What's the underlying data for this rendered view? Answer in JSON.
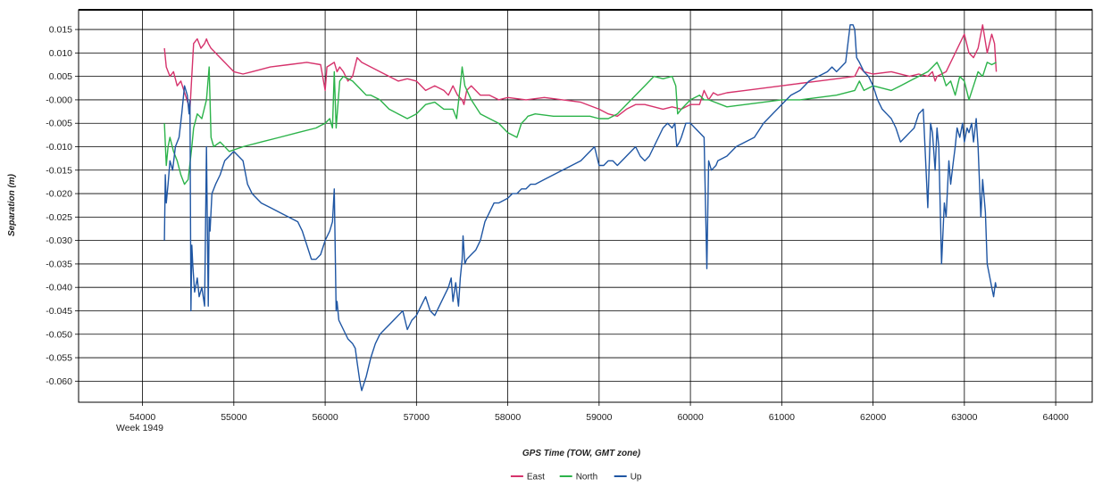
{
  "chart_data": {
    "type": "line",
    "xlabel": "GPS Time (TOW, GMT zone)",
    "ylabel": "Separation (m)",
    "x_sublabel": "Week 1949",
    "xlim": [
      53300,
      64400
    ],
    "ylim": [
      -0.0645,
      0.0192
    ],
    "x_ticks": [
      54000,
      55000,
      56000,
      57000,
      58000,
      59000,
      60000,
      61000,
      62000,
      63000,
      64000
    ],
    "x_tick_labels": [
      "54000",
      "55000",
      "56000",
      "57000",
      "58000",
      "59000",
      "60000",
      "61000",
      "62000",
      "63000",
      "64000"
    ],
    "y_ticks": [
      0.015,
      0.01,
      0.005,
      0.0,
      -0.005,
      -0.01,
      -0.015,
      -0.02,
      -0.025,
      -0.03,
      -0.035,
      -0.04,
      -0.045,
      -0.05,
      -0.055,
      -0.06
    ],
    "y_tick_labels": [
      "0.015",
      "0.010",
      "0.005",
      "-0.000",
      "-0.005",
      "-0.010",
      "-0.015",
      "-0.020",
      "-0.025",
      "-0.030",
      "-0.035",
      "-0.040",
      "-0.045",
      "-0.050",
      "-0.055",
      "-0.060"
    ],
    "grid": true,
    "legend_position": "bottom-center",
    "series": [
      {
        "name": "East",
        "color": "#d6336c",
        "x": [
          54240,
          54260,
          54300,
          54340,
          54380,
          54420,
          54470,
          54520,
          54560,
          54600,
          54640,
          54680,
          54700,
          54720,
          54750,
          54800,
          54900,
          55000,
          55100,
          55200,
          55400,
          55600,
          55800,
          55950,
          56000,
          56020,
          56100,
          56130,
          56160,
          56200,
          56250,
          56300,
          56350,
          56400,
          56500,
          56600,
          56700,
          56800,
          56900,
          57000,
          57100,
          57200,
          57300,
          57350,
          57400,
          57450,
          57500,
          57520,
          57550,
          57600,
          57700,
          57800,
          57900,
          58000,
          58200,
          58400,
          58600,
          58800,
          59000,
          59100,
          59200,
          59300,
          59400,
          59500,
          59600,
          59700,
          59800,
          59900,
          60000,
          60100,
          60150,
          60200,
          60250,
          60300,
          60400,
          60600,
          60800,
          61000,
          61200,
          61400,
          61600,
          61800,
          61850,
          61900,
          62000,
          62200,
          62400,
          62500,
          62600,
          62650,
          62680,
          62700,
          62800,
          62900,
          62950,
          63000,
          63050,
          63100,
          63150,
          63200,
          63250,
          63300,
          63330,
          63350
        ],
        "y": [
          0.011,
          0.007,
          0.005,
          0.006,
          0.003,
          0.004,
          0.001,
          -0.002,
          0.012,
          0.013,
          0.011,
          0.012,
          0.013,
          0.012,
          0.011,
          0.01,
          0.008,
          0.006,
          0.0055,
          0.006,
          0.007,
          0.0075,
          0.008,
          0.0075,
          0.002,
          0.007,
          0.008,
          0.006,
          0.007,
          0.006,
          0.004,
          0.005,
          0.009,
          0.008,
          0.007,
          0.006,
          0.005,
          0.004,
          0.0045,
          0.004,
          0.002,
          0.003,
          0.002,
          0.001,
          0.003,
          0.001,
          0.0,
          -0.001,
          0.002,
          0.003,
          0.001,
          0.001,
          0.0,
          0.0005,
          0.0,
          0.0005,
          0.0,
          -0.0005,
          -0.002,
          -0.003,
          -0.0035,
          -0.002,
          -0.001,
          -0.001,
          -0.0015,
          -0.002,
          -0.0015,
          -0.002,
          -0.001,
          -0.001,
          0.002,
          0.0,
          0.0015,
          0.001,
          0.0015,
          0.002,
          0.0025,
          0.003,
          0.0035,
          0.004,
          0.0045,
          0.005,
          0.007,
          0.006,
          0.0055,
          0.006,
          0.005,
          0.0055,
          0.005,
          0.006,
          0.004,
          0.005,
          0.006,
          0.01,
          0.012,
          0.014,
          0.01,
          0.009,
          0.011,
          0.016,
          0.01,
          0.014,
          0.012,
          0.006
        ]
      },
      {
        "name": "North",
        "color": "#2cb34a",
        "x": [
          54240,
          54260,
          54280,
          54300,
          54340,
          54380,
          54420,
          54460,
          54500,
          54540,
          54560,
          54600,
          54650,
          54700,
          54730,
          54750,
          54780,
          54850,
          54950,
          55100,
          55300,
          55500,
          55700,
          55900,
          55950,
          56000,
          56050,
          56080,
          56100,
          56120,
          56160,
          56200,
          56300,
          56400,
          56450,
          56500,
          56600,
          56700,
          56800,
          56900,
          57000,
          57100,
          57200,
          57300,
          57400,
          57440,
          57480,
          57500,
          57530,
          57600,
          57700,
          57800,
          57900,
          58000,
          58100,
          58150,
          58200,
          58220,
          58300,
          58500,
          58700,
          58900,
          59000,
          59100,
          59200,
          59300,
          59400,
          59500,
          59600,
          59700,
          59800,
          59840,
          59860,
          59900,
          60000,
          60100,
          60150,
          60200,
          60400,
          60600,
          60800,
          61000,
          61200,
          61400,
          61600,
          61800,
          61850,
          61900,
          62000,
          62100,
          62200,
          62300,
          62400,
          62500,
          62600,
          62650,
          62700,
          62750,
          62800,
          62850,
          62900,
          62950,
          63000,
          63050,
          63100,
          63150,
          63200,
          63250,
          63300,
          63350
        ],
        "y": [
          -0.005,
          -0.014,
          -0.01,
          -0.008,
          -0.011,
          -0.013,
          -0.016,
          -0.018,
          -0.017,
          -0.01,
          -0.006,
          -0.003,
          -0.004,
          0.0,
          0.007,
          -0.008,
          -0.01,
          -0.009,
          -0.011,
          -0.01,
          -0.009,
          -0.008,
          -0.007,
          -0.006,
          -0.0055,
          -0.005,
          -0.004,
          -0.006,
          0.006,
          -0.006,
          0.004,
          0.005,
          0.004,
          0.002,
          0.001,
          0.001,
          0.0,
          -0.002,
          -0.003,
          -0.004,
          -0.003,
          -0.001,
          -0.0005,
          -0.002,
          -0.002,
          -0.004,
          0.003,
          0.007,
          0.003,
          0.0,
          -0.003,
          -0.004,
          -0.005,
          -0.007,
          -0.008,
          -0.005,
          -0.004,
          -0.0035,
          -0.003,
          -0.0035,
          -0.0035,
          -0.0035,
          -0.004,
          -0.004,
          -0.003,
          -0.001,
          0.001,
          0.003,
          0.005,
          0.0045,
          0.005,
          0.003,
          -0.003,
          -0.002,
          0.0,
          0.001,
          0.0,
          0.0,
          -0.0015,
          -0.001,
          -0.0005,
          0.0,
          0.0,
          0.0005,
          0.001,
          0.002,
          0.004,
          0.002,
          0.003,
          0.0025,
          0.002,
          0.003,
          0.004,
          0.005,
          0.006,
          0.007,
          0.008,
          0.006,
          0.003,
          0.004,
          0.001,
          0.005,
          0.004,
          0.0,
          0.003,
          0.006,
          0.005,
          0.008,
          0.0075,
          0.008
        ]
      },
      {
        "name": "Up",
        "color": "#1f56a3",
        "x": [
          54240,
          54250,
          54260,
          54280,
          54300,
          54330,
          54360,
          54400,
          54430,
          54460,
          54490,
          54510,
          54520,
          54530,
          54540,
          54550,
          54570,
          54600,
          54620,
          54650,
          54680,
          54700,
          54720,
          54730,
          54740,
          54760,
          54800,
          54850,
          54900,
          55000,
          55100,
          55150,
          55200,
          55300,
          55400,
          55500,
          55600,
          55700,
          55750,
          55800,
          55850,
          55900,
          55950,
          56000,
          56050,
          56080,
          56100,
          56120,
          56130,
          56150,
          56200,
          56250,
          56300,
          56330,
          56350,
          56380,
          56400,
          56450,
          56500,
          56550,
          56600,
          56650,
          56700,
          56750,
          56800,
          56850,
          56900,
          56950,
          57000,
          57050,
          57100,
          57150,
          57200,
          57250,
          57300,
          57350,
          57380,
          57400,
          57430,
          57460,
          57480,
          57500,
          57510,
          57530,
          57550,
          57600,
          57650,
          57700,
          57750,
          57800,
          57850,
          57900,
          58000,
          58050,
          58100,
          58150,
          58200,
          58250,
          58300,
          58400,
          58500,
          58600,
          58700,
          58800,
          58900,
          58950,
          59000,
          59050,
          59100,
          59150,
          59200,
          59250,
          59300,
          59350,
          59400,
          59450,
          59500,
          59550,
          59600,
          59650,
          59700,
          59750,
          59800,
          59830,
          59850,
          59880,
          59900,
          59950,
          60000,
          60050,
          60100,
          60150,
          60180,
          60200,
          60230,
          60280,
          60300,
          60400,
          60500,
          60600,
          60700,
          60800,
          60900,
          61000,
          61100,
          61200,
          61300,
          61400,
          61500,
          61550,
          61600,
          61650,
          61700,
          61750,
          61780,
          61800,
          61820,
          61850,
          61900,
          61950,
          62000,
          62050,
          62100,
          62150,
          62200,
          62250,
          62300,
          62350,
          62400,
          62450,
          62500,
          62550,
          62600,
          62630,
          62650,
          62680,
          62700,
          62720,
          62750,
          62780,
          62800,
          62830,
          62850,
          62880,
          62900,
          62920,
          62950,
          62980,
          63000,
          63030,
          63050,
          63080,
          63100,
          63130,
          63150,
          63180,
          63200,
          63230,
          63250,
          63280,
          63300,
          63320,
          63340,
          63350
        ],
        "y": [
          -0.03,
          -0.016,
          -0.022,
          -0.018,
          -0.013,
          -0.015,
          -0.01,
          -0.008,
          -0.003,
          0.003,
          0.001,
          -0.003,
          0.0,
          -0.045,
          -0.031,
          -0.035,
          -0.041,
          -0.038,
          -0.042,
          -0.04,
          -0.044,
          -0.01,
          -0.044,
          -0.025,
          -0.028,
          -0.02,
          -0.018,
          -0.016,
          -0.013,
          -0.011,
          -0.013,
          -0.018,
          -0.02,
          -0.022,
          -0.023,
          -0.024,
          -0.025,
          -0.026,
          -0.028,
          -0.031,
          -0.034,
          -0.034,
          -0.033,
          -0.03,
          -0.028,
          -0.026,
          -0.019,
          -0.045,
          -0.043,
          -0.047,
          -0.049,
          -0.051,
          -0.052,
          -0.053,
          -0.056,
          -0.06,
          -0.062,
          -0.059,
          -0.055,
          -0.052,
          -0.05,
          -0.049,
          -0.048,
          -0.047,
          -0.046,
          -0.045,
          -0.049,
          -0.047,
          -0.046,
          -0.044,
          -0.042,
          -0.045,
          -0.046,
          -0.044,
          -0.042,
          -0.04,
          -0.038,
          -0.043,
          -0.039,
          -0.044,
          -0.038,
          -0.034,
          -0.029,
          -0.035,
          -0.034,
          -0.033,
          -0.032,
          -0.03,
          -0.026,
          -0.024,
          -0.022,
          -0.022,
          -0.021,
          -0.02,
          -0.02,
          -0.019,
          -0.019,
          -0.018,
          -0.018,
          -0.017,
          -0.016,
          -0.015,
          -0.014,
          -0.013,
          -0.011,
          -0.01,
          -0.014,
          -0.014,
          -0.013,
          -0.013,
          -0.014,
          -0.013,
          -0.012,
          -0.011,
          -0.01,
          -0.012,
          -0.013,
          -0.012,
          -0.01,
          -0.008,
          -0.006,
          -0.005,
          -0.006,
          -0.005,
          -0.01,
          -0.009,
          -0.008,
          -0.005,
          -0.005,
          -0.006,
          -0.007,
          -0.008,
          -0.036,
          -0.013,
          -0.015,
          -0.014,
          -0.013,
          -0.012,
          -0.01,
          -0.009,
          -0.008,
          -0.005,
          -0.003,
          -0.001,
          0.001,
          0.002,
          0.004,
          0.005,
          0.006,
          0.007,
          0.006,
          0.007,
          0.008,
          0.016,
          0.016,
          0.015,
          0.009,
          0.008,
          0.006,
          0.005,
          0.003,
          0.0,
          -0.002,
          -0.003,
          -0.004,
          -0.006,
          -0.009,
          -0.008,
          -0.007,
          -0.006,
          -0.003,
          -0.002,
          -0.023,
          -0.005,
          -0.007,
          -0.015,
          -0.006,
          -0.01,
          -0.035,
          -0.022,
          -0.025,
          -0.013,
          -0.018,
          -0.013,
          -0.01,
          -0.006,
          -0.008,
          -0.005,
          -0.009,
          -0.006,
          -0.007,
          -0.005,
          -0.009,
          -0.004,
          -0.01,
          -0.025,
          -0.017,
          -0.024,
          -0.035,
          -0.038,
          -0.04,
          -0.042,
          -0.039,
          -0.04
        ]
      }
    ]
  }
}
